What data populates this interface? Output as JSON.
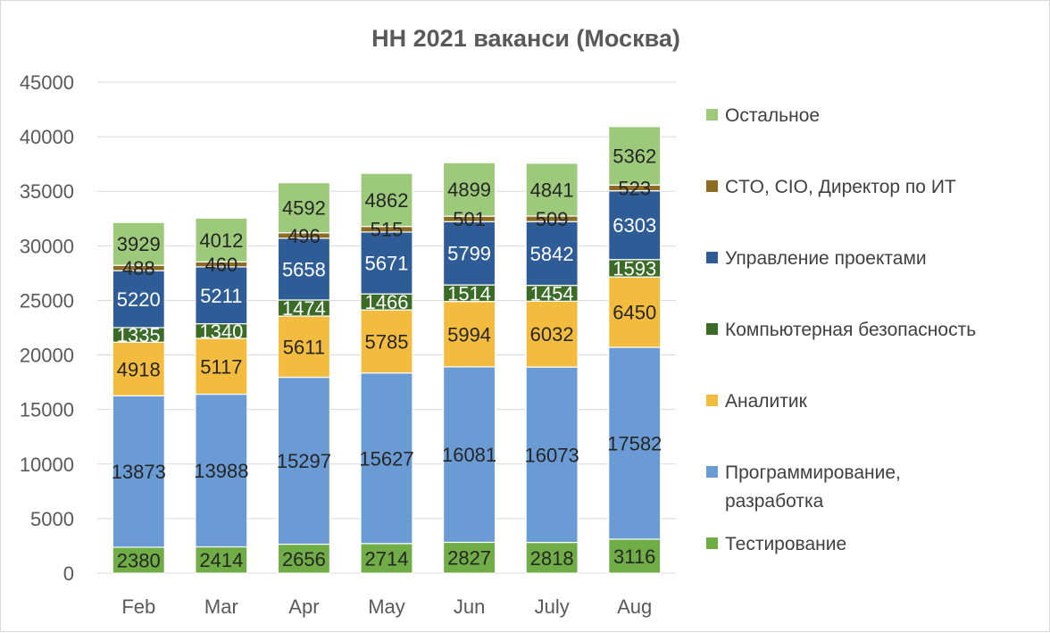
{
  "chart_data": {
    "type": "bar",
    "stacked": true,
    "title": "HH 2021 ваканси (Москва)",
    "xlabel": "",
    "ylabel": "",
    "ylim": [
      0,
      45000
    ],
    "yticks": [
      0,
      5000,
      10000,
      15000,
      20000,
      25000,
      30000,
      35000,
      40000,
      45000
    ],
    "grid": true,
    "legend_position": "right",
    "categories": [
      "Feb",
      "Mar",
      "Apr",
      "May",
      "Jun",
      "July",
      "Aug"
    ],
    "series": [
      {
        "name": "Тестирование",
        "color": "#70ad47",
        "label_color": "#262626",
        "values": [
          2380,
          2414,
          2656,
          2714,
          2827,
          2818,
          3116
        ]
      },
      {
        "name": "Программирование, разработка",
        "color": "#6a9bd4",
        "label_color": "#262626",
        "values": [
          13873,
          13988,
          15297,
          15627,
          16081,
          16073,
          17582
        ]
      },
      {
        "name": "Аналитик",
        "color": "#f4bc3f",
        "label_color": "#262626",
        "values": [
          4918,
          5117,
          5611,
          5785,
          5994,
          6032,
          6450
        ]
      },
      {
        "name": "Компьютерная безопасность",
        "color": "#3a6b27",
        "label_color": "#ffffff",
        "values": [
          1335,
          1340,
          1474,
          1466,
          1514,
          1454,
          1593
        ]
      },
      {
        "name": "Управление проектами",
        "color": "#2e5c96",
        "label_color": "#ffffff",
        "values": [
          5220,
          5211,
          5658,
          5671,
          5799,
          5842,
          6303
        ]
      },
      {
        "name": "CTO, CIO, Директор по ИТ",
        "color": "#8c6b22",
        "label_color": "#262626",
        "values": [
          488,
          460,
          496,
          515,
          501,
          509,
          523
        ]
      },
      {
        "name": "Остальное",
        "color": "#9cc97a",
        "label_color": "#262626",
        "values": [
          3929,
          4012,
          4592,
          4862,
          4899,
          4841,
          5362
        ]
      }
    ]
  }
}
